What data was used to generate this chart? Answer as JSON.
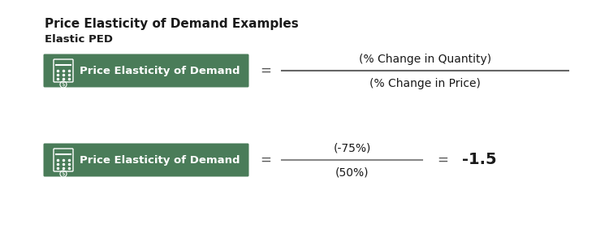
{
  "title": "Price Elasticity of Demand Examples",
  "subtitle": "Elastic PED",
  "green_color": "#4a7c59",
  "box_label": "Price Elasticity of Demand",
  "row1": {
    "numerator": "(% Change in Quantity)",
    "denominator": "(% Change in Price)",
    "equal_sign": "="
  },
  "row2": {
    "numerator": "(-75%)",
    "denominator": "(50%)",
    "equal_sign": "=",
    "result_sign": "=",
    "result": "-1.5"
  },
  "title_fontsize": 11,
  "subtitle_fontsize": 9.5,
  "label_fontsize": 9.5,
  "formula_fontsize": 10
}
